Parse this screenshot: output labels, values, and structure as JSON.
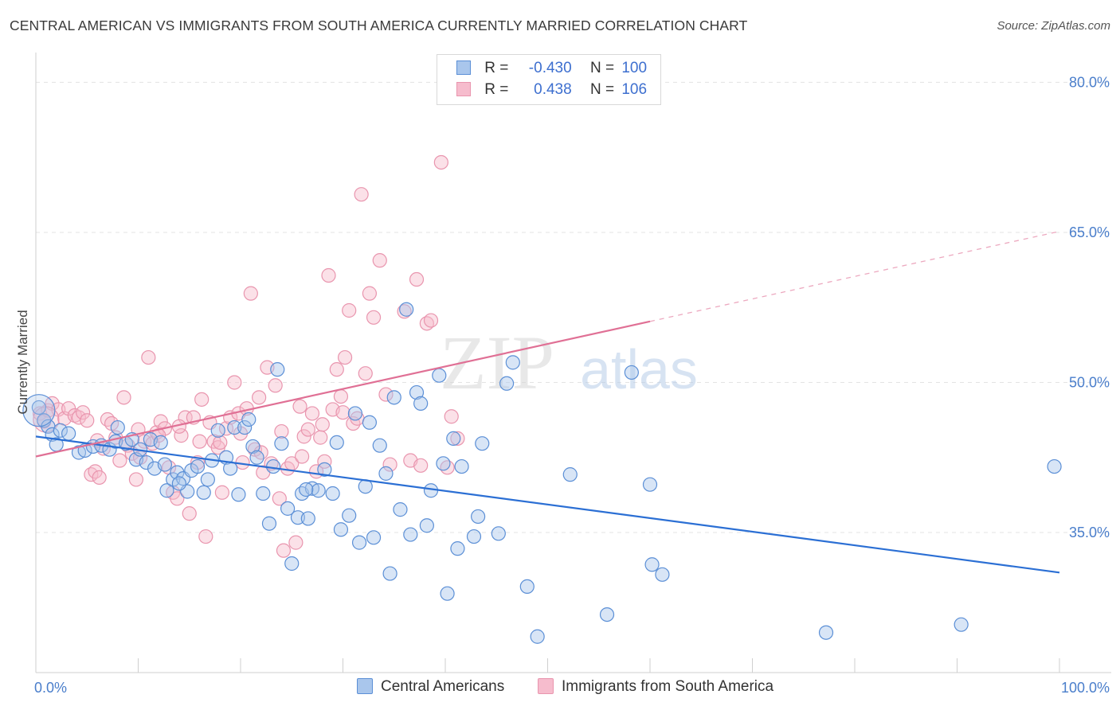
{
  "header": {
    "title": "CENTRAL AMERICAN VS IMMIGRANTS FROM SOUTH AMERICA CURRENTLY MARRIED CORRELATION CHART",
    "source": "Source: ZipAtlas.com"
  },
  "legend": {
    "rows": [
      {
        "r_label": "R =",
        "r_value": "-0.430",
        "n_label": "N =",
        "n_value": "100"
      },
      {
        "r_label": "R =",
        "r_value": " 0.438",
        "n_label": "N =",
        "n_value": "106"
      }
    ]
  },
  "watermark": {
    "zip": "ZIP",
    "atlas": "atlas"
  },
  "colors": {
    "blue_fill": "#a9c6ec",
    "blue_stroke": "#5b8fd6",
    "blue_line": "#2b6fd4",
    "pink_fill": "#f6bccd",
    "pink_stroke": "#e995ae",
    "pink_line": "#e07095"
  },
  "chart_data": {
    "type": "scatter",
    "title": "CENTRAL AMERICAN VS IMMIGRANTS FROM SOUTH AMERICA CURRENTLY MARRIED CORRELATION CHART",
    "xlabel": "",
    "ylabel": "Currently Married",
    "xlim": [
      0,
      100
    ],
    "ylim": [
      21,
      82.5
    ],
    "x_tick_labels": [
      "0.0%",
      "100.0%"
    ],
    "y_ticks": [
      35,
      50,
      65,
      80
    ],
    "y_tick_labels": [
      "35.0%",
      "50.0%",
      "65.0%",
      "80.0%"
    ],
    "grid": true,
    "legend_position": "top-center",
    "series": [
      {
        "name": "Central Americans",
        "color": "#a9c6ec",
        "r": -0.43,
        "n": 100,
        "trend": {
          "x0": 0,
          "y0": 44.6,
          "x1": 100,
          "y1": 31.0,
          "dashed_from": null
        },
        "points": [
          [
            0.3,
            47.5
          ],
          [
            0.8,
            46.2
          ],
          [
            1.2,
            45.6
          ],
          [
            1.6,
            44.8
          ],
          [
            2.0,
            43.8
          ],
          [
            2.4,
            45.2
          ],
          [
            3.2,
            44.9
          ],
          [
            4.2,
            43.0
          ],
          [
            4.8,
            43.2
          ],
          [
            5.6,
            43.6
          ],
          [
            6.4,
            43.7
          ],
          [
            7.2,
            43.3
          ],
          [
            7.8,
            44.1
          ],
          [
            8.0,
            45.5
          ],
          [
            8.8,
            43.9
          ],
          [
            9.4,
            44.3
          ],
          [
            9.8,
            42.3
          ],
          [
            10.2,
            43.3
          ],
          [
            10.8,
            42.0
          ],
          [
            11.2,
            44.3
          ],
          [
            11.6,
            41.4
          ],
          [
            12.2,
            44.0
          ],
          [
            12.6,
            41.8
          ],
          [
            12.8,
            39.2
          ],
          [
            13.4,
            40.3
          ],
          [
            13.8,
            41.0
          ],
          [
            14.4,
            40.4
          ],
          [
            14.8,
            39.1
          ],
          [
            15.2,
            41.2
          ],
          [
            15.8,
            41.6
          ],
          [
            16.4,
            39.0
          ],
          [
            16.8,
            40.3
          ],
          [
            17.2,
            42.2
          ],
          [
            17.8,
            45.2
          ],
          [
            18.6,
            42.5
          ],
          [
            19.0,
            41.4
          ],
          [
            19.4,
            45.5
          ],
          [
            19.8,
            38.8
          ],
          [
            20.4,
            45.5
          ],
          [
            20.8,
            46.3
          ],
          [
            21.2,
            43.6
          ],
          [
            21.6,
            42.5
          ],
          [
            22.2,
            38.9
          ],
          [
            22.8,
            35.9
          ],
          [
            23.2,
            41.6
          ],
          [
            23.6,
            51.3
          ],
          [
            24.0,
            43.9
          ],
          [
            24.6,
            37.4
          ],
          [
            25.0,
            31.9
          ],
          [
            25.6,
            36.5
          ],
          [
            26.0,
            38.9
          ],
          [
            26.6,
            36.4
          ],
          [
            27.0,
            39.4
          ],
          [
            27.6,
            39.2
          ],
          [
            28.2,
            41.3
          ],
          [
            29.0,
            38.9
          ],
          [
            29.4,
            44.0
          ],
          [
            29.8,
            35.3
          ],
          [
            30.6,
            36.7
          ],
          [
            31.2,
            46.9
          ],
          [
            31.6,
            34.0
          ],
          [
            32.2,
            39.6
          ],
          [
            32.6,
            46.0
          ],
          [
            33.0,
            34.5
          ],
          [
            33.6,
            43.7
          ],
          [
            34.2,
            40.9
          ],
          [
            34.6,
            30.9
          ],
          [
            35.0,
            48.5
          ],
          [
            35.6,
            37.3
          ],
          [
            36.2,
            57.3
          ],
          [
            36.6,
            34.8
          ],
          [
            37.2,
            49.0
          ],
          [
            37.6,
            47.9
          ],
          [
            38.2,
            35.7
          ],
          [
            38.6,
            39.2
          ],
          [
            39.4,
            50.7
          ],
          [
            39.8,
            41.9
          ],
          [
            40.2,
            28.9
          ],
          [
            40.8,
            44.4
          ],
          [
            41.2,
            33.4
          ],
          [
            41.6,
            41.6
          ],
          [
            42.8,
            34.6
          ],
          [
            43.2,
            36.6
          ],
          [
            45.2,
            34.9
          ],
          [
            46.0,
            49.9
          ],
          [
            46.6,
            52.0
          ],
          [
            48.0,
            29.6
          ],
          [
            49.0,
            24.6
          ],
          [
            52.2,
            40.8
          ],
          [
            55.8,
            26.8
          ],
          [
            58.2,
            51.0
          ],
          [
            60.0,
            39.8
          ],
          [
            60.2,
            31.8
          ],
          [
            61.2,
            30.8
          ],
          [
            77.2,
            25.0
          ],
          [
            90.4,
            25.8
          ],
          [
            99.5,
            41.6
          ],
          [
            43.6,
            43.9
          ],
          [
            14.0,
            39.9
          ],
          [
            26.4,
            39.3
          ]
        ]
      },
      {
        "name": "Immigrants from South America",
        "color": "#f6bccd",
        "r": 0.438,
        "n": 106,
        "trend": {
          "x0": 0,
          "y0": 42.6,
          "x1": 100,
          "y1": 65.1,
          "dashed_from": 60
        },
        "points": [
          [
            0.4,
            46.9
          ],
          [
            0.8,
            46.1
          ],
          [
            1.2,
            47.2
          ],
          [
            1.6,
            47.9
          ],
          [
            2.2,
            47.3
          ],
          [
            2.8,
            46.4
          ],
          [
            3.2,
            47.4
          ],
          [
            3.8,
            46.7
          ],
          [
            4.2,
            46.5
          ],
          [
            4.6,
            47.0
          ],
          [
            5.0,
            46.2
          ],
          [
            5.4,
            40.8
          ],
          [
            5.8,
            41.1
          ],
          [
            6.2,
            40.5
          ],
          [
            6.6,
            43.4
          ],
          [
            7.0,
            46.3
          ],
          [
            7.4,
            45.9
          ],
          [
            7.8,
            44.5
          ],
          [
            8.2,
            42.2
          ],
          [
            8.6,
            48.5
          ],
          [
            9.0,
            43.7
          ],
          [
            9.4,
            42.9
          ],
          [
            9.8,
            40.3
          ],
          [
            10.2,
            42.5
          ],
          [
            10.6,
            44.1
          ],
          [
            11.0,
            52.5
          ],
          [
            11.4,
            43.9
          ],
          [
            11.8,
            45.0
          ],
          [
            12.2,
            46.1
          ],
          [
            12.6,
            45.4
          ],
          [
            13.0,
            41.5
          ],
          [
            13.4,
            39.0
          ],
          [
            13.8,
            38.4
          ],
          [
            14.2,
            44.7
          ],
          [
            14.6,
            46.5
          ],
          [
            15.0,
            36.9
          ],
          [
            15.4,
            46.5
          ],
          [
            15.8,
            42.0
          ],
          [
            16.2,
            48.3
          ],
          [
            16.6,
            34.6
          ],
          [
            17.0,
            46.0
          ],
          [
            17.4,
            44.1
          ],
          [
            17.8,
            43.5
          ],
          [
            18.2,
            39.0
          ],
          [
            18.6,
            45.4
          ],
          [
            19.0,
            46.5
          ],
          [
            19.4,
            50.0
          ],
          [
            19.8,
            46.9
          ],
          [
            20.2,
            42.0
          ],
          [
            20.6,
            47.4
          ],
          [
            21.0,
            58.9
          ],
          [
            21.4,
            43.3
          ],
          [
            21.8,
            48.5
          ],
          [
            22.2,
            41.0
          ],
          [
            22.6,
            51.5
          ],
          [
            23.0,
            41.9
          ],
          [
            23.4,
            49.7
          ],
          [
            23.8,
            38.4
          ],
          [
            24.2,
            33.2
          ],
          [
            24.6,
            41.4
          ],
          [
            25.0,
            41.9
          ],
          [
            25.4,
            34.0
          ],
          [
            25.8,
            47.6
          ],
          [
            26.2,
            44.6
          ],
          [
            26.6,
            45.3
          ],
          [
            27.0,
            46.9
          ],
          [
            27.4,
            41.1
          ],
          [
            27.8,
            44.5
          ],
          [
            28.2,
            42.1
          ],
          [
            28.6,
            60.7
          ],
          [
            29.0,
            47.3
          ],
          [
            29.4,
            51.3
          ],
          [
            29.8,
            48.6
          ],
          [
            30.2,
            52.5
          ],
          [
            30.6,
            57.2
          ],
          [
            31.0,
            45.9
          ],
          [
            31.4,
            46.4
          ],
          [
            31.8,
            68.8
          ],
          [
            32.2,
            50.9
          ],
          [
            32.6,
            58.9
          ],
          [
            33.0,
            56.5
          ],
          [
            33.6,
            62.2
          ],
          [
            34.2,
            48.8
          ],
          [
            34.6,
            41.8
          ],
          [
            36.0,
            57.1
          ],
          [
            36.6,
            42.2
          ],
          [
            37.2,
            60.3
          ],
          [
            37.6,
            41.7
          ],
          [
            38.2,
            55.9
          ],
          [
            38.6,
            56.2
          ],
          [
            39.6,
            72.0
          ],
          [
            40.2,
            41.5
          ],
          [
            40.6,
            46.6
          ],
          [
            41.2,
            44.4
          ],
          [
            16.0,
            44.1
          ],
          [
            18.0,
            44.0
          ],
          [
            20.0,
            44.9
          ],
          [
            22.0,
            43.0
          ],
          [
            24.0,
            45.1
          ],
          [
            26.0,
            42.6
          ],
          [
            28.0,
            45.8
          ],
          [
            30.0,
            47.0
          ],
          [
            12.0,
            44.7
          ],
          [
            10.0,
            45.3
          ],
          [
            6.0,
            44.2
          ],
          [
            14.0,
            45.6
          ]
        ]
      }
    ]
  }
}
